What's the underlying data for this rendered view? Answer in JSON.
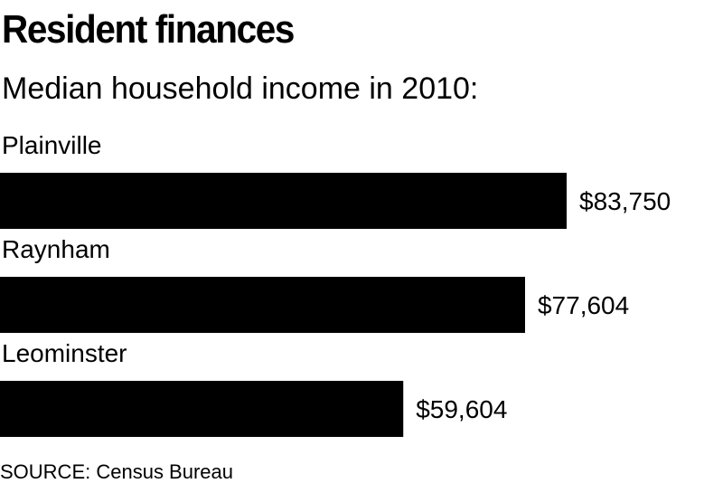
{
  "chart_data": {
    "type": "bar",
    "orientation": "horizontal",
    "title": "Resident finances",
    "subtitle": "Median household income in 2010:",
    "categories": [
      "Plainville",
      "Raynham",
      "Leominster"
    ],
    "values": [
      83750,
      77604,
      59604
    ],
    "value_labels": [
      "$83,750",
      "$77,604",
      "$59,604"
    ],
    "bar_color": "#000000",
    "grid": false,
    "source": "SOURCE: Census Bureau"
  }
}
